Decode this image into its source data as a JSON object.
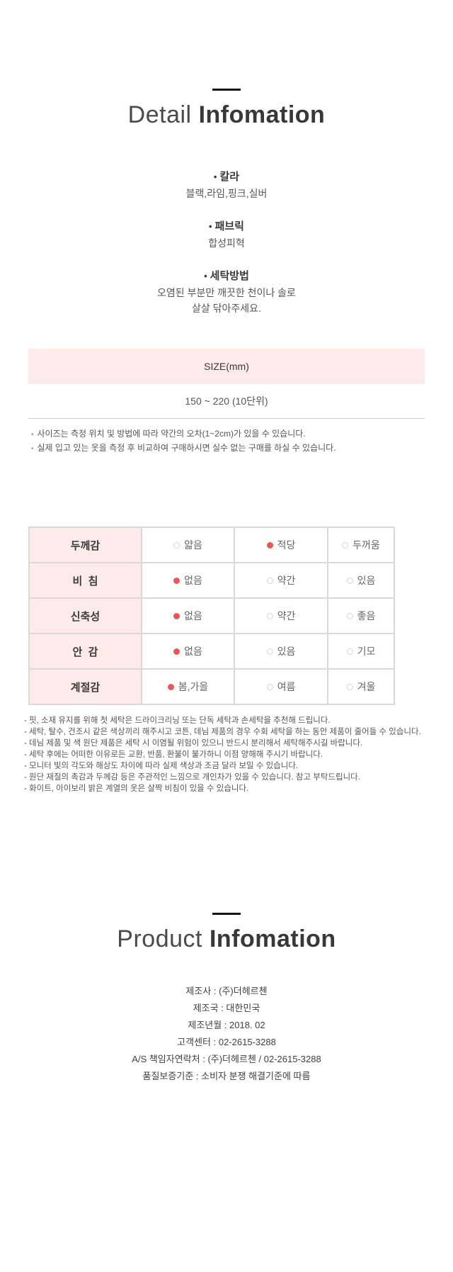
{
  "colors": {
    "accent_pink": "#fcebe9",
    "radio_selected_red": "#f0545a"
  },
  "detail_section": {
    "title_light": "Detail",
    "title_bold": "Infomation",
    "bullet": "•",
    "specs": [
      {
        "label": "칼라",
        "lines": [
          "블랙,라임,핑크,실버"
        ]
      },
      {
        "label": "패브릭",
        "lines": [
          "합성피혁"
        ]
      },
      {
        "label": "세탁방법",
        "lines": [
          "오염된 부분만 깨끗한 천이나 솔로",
          "살살 닦아주세요."
        ]
      }
    ]
  },
  "size_table": {
    "header": "SIZE(mm)",
    "value": "150 ~ 220 (10단위)",
    "note_bullet": "•",
    "notes": [
      "사이즈는 측정 위치 및 방법에 따라 약간의 오차(1~2cm)가 있을 수 있습니다.",
      "실제 입고 있는 옷을 측정 후 비교하여 구매하시면 실수 없는 구매를 하실 수 있습니다."
    ]
  },
  "feature_table": {
    "rows": [
      {
        "label": "두께감",
        "options": [
          {
            "text": "얇음",
            "selected": false
          },
          {
            "text": "적당",
            "selected": true
          },
          {
            "text": "두꺼움",
            "selected": false
          }
        ]
      },
      {
        "label": "비  침",
        "options": [
          {
            "text": "없음",
            "selected": true
          },
          {
            "text": "약간",
            "selected": false
          },
          {
            "text": "있음",
            "selected": false
          }
        ]
      },
      {
        "label": "신축성",
        "options": [
          {
            "text": "없음",
            "selected": true
          },
          {
            "text": "약간",
            "selected": false
          },
          {
            "text": "좋음",
            "selected": false
          }
        ]
      },
      {
        "label": "안  감",
        "options": [
          {
            "text": "없음",
            "selected": true
          },
          {
            "text": "있음",
            "selected": false
          },
          {
            "text": "기모",
            "selected": false
          }
        ]
      },
      {
        "label": "계절감",
        "options": [
          {
            "text": "봄,가을",
            "selected": true
          },
          {
            "text": "여름",
            "selected": false
          },
          {
            "text": "겨울",
            "selected": false
          }
        ]
      }
    ]
  },
  "care_notes": [
    "- 핏, 소재 유지를 위해 첫 세탁은 드라이크리닝 또는 단독 세탁과 손세탁을 추천해 드립니다.",
    "- 세탁, 탈수, 건조시 같은 색상끼리 해주시고 코튼, 데님 제품의 경우 수회 세탁을 하는 동안 제품이 줄어들 수 있습니다.",
    "- 데님 제품 및 색 원단 제품은 세탁 시 이염될 위험이 있으니 반드시 분리해서 세탁해주시길 바랍니다.",
    "- 세탁 후에는 어떠한 이유로든 교환, 반품, 환불이 불가하니 이점 양해해 주시기 바랍니다.",
    "- 모니터 빛의 각도와 해상도 차이에 따라 실제 색상과 조금 달라 보일 수 있습니다.",
    "- 원단 재질의 촉감과 두께감 등은 주관적인 느낌으로 개인차가 있을 수 있습니다. 참고 부탁드립니다.",
    "- 화이트, 아이보리 밝은 계열의 옷은 살짝 비침이 있을 수 있습니다."
  ],
  "product_section": {
    "title_light": "Product",
    "title_bold": "Infomation",
    "rows": [
      "제조사 : (주)더헤르첸",
      "제조국 : 대한민국",
      "제조년월 : 2018. 02",
      "고객센터 : 02-2615-3288",
      "A/S 책임자연락처 : (주)더헤르첸 / 02-2615-3288",
      "품질보증기준 : 소비자 분쟁 해결기준에 따름"
    ]
  }
}
